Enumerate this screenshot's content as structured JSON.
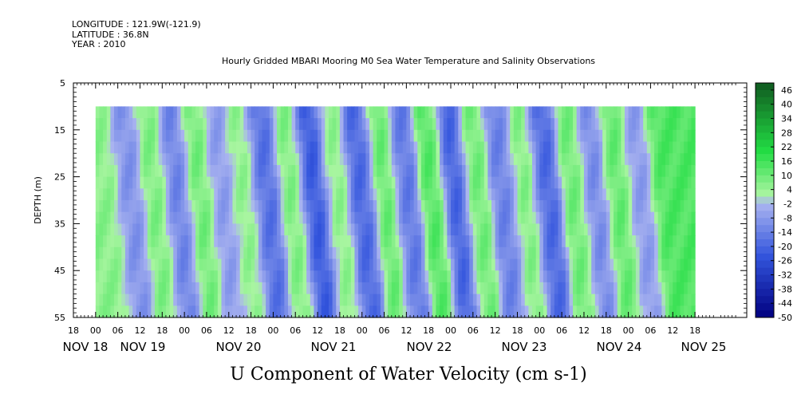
{
  "header": {
    "longitude": "LONGITUDE : 121.9W(-121.9)",
    "latitude": "LATITUDE : 36.8N",
    "year": "YEAR : 2010"
  },
  "chart_data": {
    "type": "heatmap",
    "title": "Hourly Gridded MBARI Mooring M0 Sea Water Temperature and Salinity Observations",
    "xlabel": "U Component of Water Velocity (cm s-1)",
    "ylabel": "DEPTH (m)",
    "ylim": [
      55,
      5
    ],
    "y_ticks": [
      5,
      15,
      25,
      35,
      45,
      55
    ],
    "x_hour_labels": [
      "18",
      "00",
      "06",
      "12",
      "18",
      "00",
      "06",
      "12",
      "18",
      "00",
      "06",
      "12",
      "18",
      "00",
      "06",
      "12",
      "18",
      "00",
      "06",
      "12",
      "18",
      "00",
      "06",
      "12",
      "18",
      "00",
      "06",
      "12",
      "18"
    ],
    "x_date_labels": [
      "NOV 18",
      "NOV 19",
      "NOV 20",
      "NOV 21",
      "NOV 22",
      "NOV 23",
      "NOV 24",
      "NOV 25"
    ],
    "data_depth_range": [
      10,
      55
    ],
    "data_time_range": [
      "NOV 19 00",
      "NOV 25 18"
    ],
    "colorbar": {
      "labels": [
        "46",
        "40",
        "34",
        "28",
        "22",
        "16",
        "10",
        "4",
        "-2",
        "-8",
        "-14",
        "-20",
        "-26",
        "-32",
        "-38",
        "-44",
        "-50"
      ],
      "range": [
        -50,
        49
      ]
    },
    "colors": {
      "strong_negative": "#000080",
      "negative": "#3355dd",
      "weak_negative": "#aab4f0",
      "weak_positive": "#a8f5a0",
      "positive": "#22dd44",
      "strong_positive": "#105a20"
    },
    "field_profile": {
      "description_hours_from_nov18_00": "mean u at each hour, alternating tidal bands",
      "band_centers_hours": [
        27,
        33,
        40,
        46,
        52,
        58,
        64,
        70,
        77,
        83,
        89,
        96,
        102,
        108,
        115,
        121,
        127,
        134,
        140,
        146,
        153,
        159,
        165,
        171,
        178
      ],
      "band_values": [
        6,
        -10,
        8,
        -14,
        10,
        -8,
        6,
        -18,
        8,
        -24,
        6,
        -20,
        12,
        -16,
        14,
        -22,
        10,
        -14,
        8,
        -20,
        10,
        -12,
        12,
        -8,
        14
      ]
    }
  }
}
